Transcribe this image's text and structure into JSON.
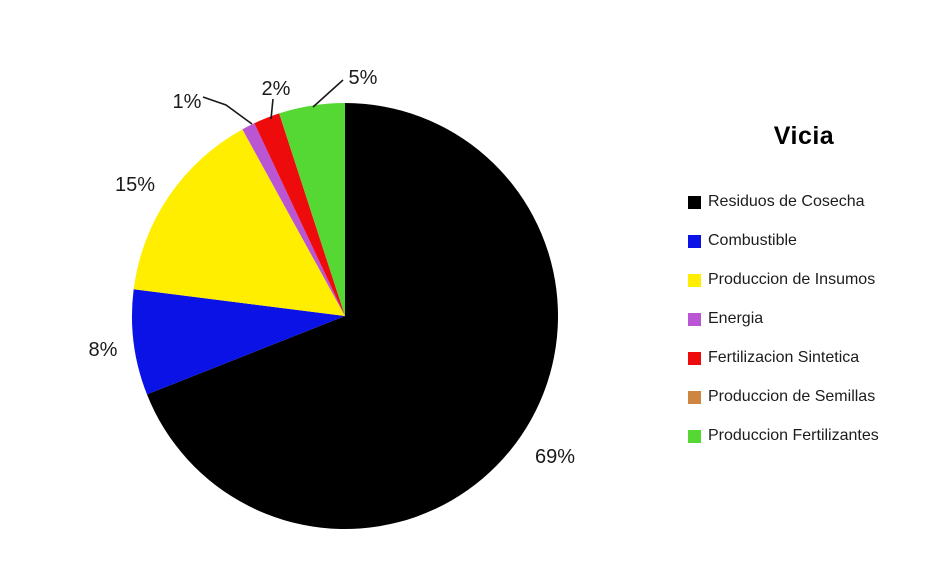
{
  "figure": {
    "background": "#ffffff",
    "label_color": "#1a1a1a"
  },
  "chart_data": {
    "type": "pie",
    "title": "Vicia",
    "direction": "clockwise",
    "start_angle_deg": 0,
    "legend_position": "right",
    "grid": false,
    "slices": [
      {
        "name": "Residuos de Cosecha",
        "value": 69,
        "label": "69%",
        "color": "#000000"
      },
      {
        "name": "Combustible",
        "value": 8,
        "label": "8%",
        "color": "#0a12e6"
      },
      {
        "name": "Produccion de Insumos",
        "value": 15,
        "label": "15%",
        "color": "#ffee00"
      },
      {
        "name": "Energia",
        "value": 1,
        "label": "1%",
        "color": "#ba55d3"
      },
      {
        "name": "Fertilizacion Sintetica",
        "value": 2,
        "label": "2%",
        "color": "#ee0b0b"
      },
      {
        "name": "Produccion de Semillas",
        "value": 0,
        "label": "",
        "color": "#cd853f"
      },
      {
        "name": "Produccion Fertilizantes",
        "value": 5,
        "label": "5%",
        "color": "#55d833"
      }
    ]
  }
}
